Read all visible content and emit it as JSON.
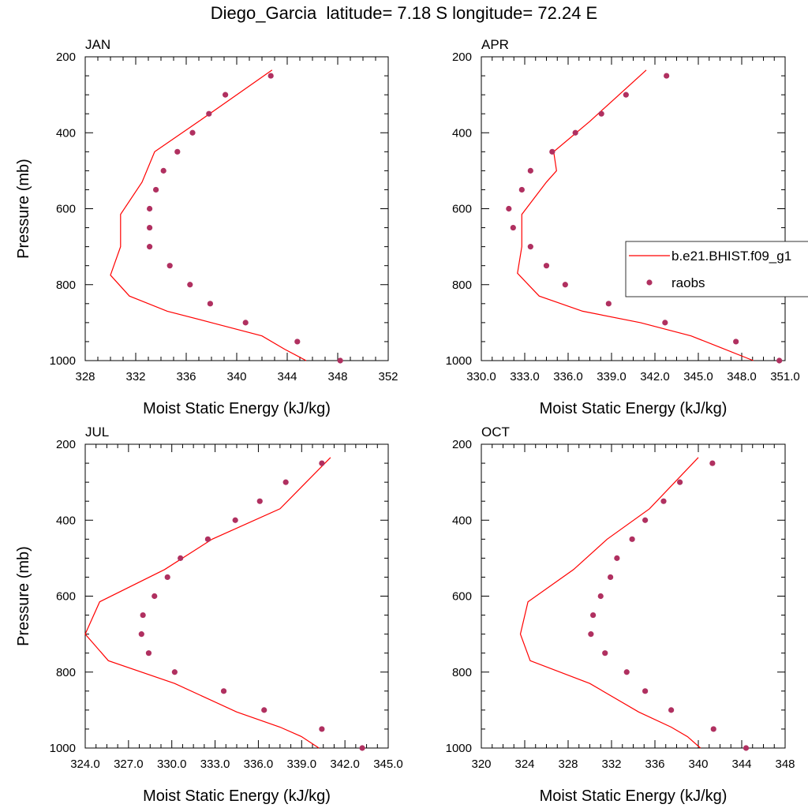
{
  "title": "Diego_Garcia  latitude= 7.18 S longitude= 72.24 E",
  "colors": {
    "model": "#ff0000",
    "obs": "#b03060"
  },
  "chart_data": [
    {
      "type": "line",
      "title": "JAN",
      "xlabel": "Moist Static Energy (kJ/kg)",
      "ylabel": "Pressure (mb)",
      "xlim": [
        328,
        352
      ],
      "ylim": [
        1000,
        200
      ],
      "xticks": [
        "328",
        "332",
        "336",
        "340",
        "344",
        "348",
        "352"
      ],
      "yticks": [
        "200",
        "400",
        "600",
        "800",
        "1000"
      ],
      "series": [
        {
          "name": "b.e21.BHIST.f09_g1",
          "kind": "line",
          "x": [
            345.5,
            343.8,
            342.0,
            338.0,
            334.5,
            331.5,
            330.0,
            330.8,
            330.8,
            332.5,
            333.5,
            337.0,
            342.8
          ],
          "y": [
            1000,
            970,
            935,
            900,
            870,
            830,
            775,
            700,
            615,
            530,
            450,
            370,
            235
          ]
        },
        {
          "name": "raobs",
          "kind": "scatter",
          "x": [
            348.2,
            344.8,
            340.7,
            337.9,
            336.3,
            334.7,
            333.1,
            333.1,
            333.1,
            333.6,
            334.2,
            335.3,
            336.5,
            337.8,
            339.1,
            342.7
          ],
          "y": [
            1000,
            950,
            900,
            850,
            800,
            750,
            700,
            650,
            600,
            550,
            500,
            450,
            400,
            350,
            300,
            250
          ]
        }
      ]
    },
    {
      "type": "line",
      "title": "APR",
      "xlabel": "Moist Static Energy (kJ/kg)",
      "ylabel": "",
      "xlim": [
        330,
        351
      ],
      "ylim": [
        1000,
        200
      ],
      "xticks": [
        "330.0",
        "333.0",
        "336.0",
        "339.0",
        "342.0",
        "345.0",
        "348.0",
        "351.0"
      ],
      "yticks": [
        "200",
        "400",
        "600",
        "800",
        "1000"
      ],
      "series": [
        {
          "name": "b.e21.BHIST.f09_g1",
          "kind": "line",
          "x": [
            348.8,
            346.5,
            344.5,
            341.0,
            337.0,
            334.0,
            332.5,
            332.8,
            332.8,
            334.5,
            335.2,
            335.0,
            337.5,
            341.4
          ],
          "y": [
            1000,
            965,
            935,
            900,
            870,
            830,
            770,
            700,
            615,
            530,
            500,
            450,
            370,
            235
          ]
        },
        {
          "name": "raobs",
          "kind": "scatter",
          "x": [
            350.6,
            347.6,
            342.7,
            338.8,
            335.8,
            334.5,
            333.4,
            332.2,
            331.9,
            332.8,
            333.4,
            334.9,
            336.5,
            338.3,
            340.0,
            342.8
          ],
          "y": [
            1000,
            950,
            900,
            850,
            800,
            750,
            700,
            650,
            600,
            550,
            500,
            450,
            400,
            350,
            300,
            250
          ]
        }
      ],
      "legend": {
        "placement": "right",
        "entries": [
          "b.e21.BHIST.f09_g1",
          "raobs"
        ]
      }
    },
    {
      "type": "line",
      "title": "JUL",
      "xlabel": "Moist Static Energy (kJ/kg)",
      "ylabel": "Pressure (mb)",
      "xlim": [
        324,
        345
      ],
      "ylim": [
        1000,
        200
      ],
      "xticks": [
        "324.0",
        "327.0",
        "330.0",
        "333.0",
        "336.0",
        "339.0",
        "342.0",
        "345.0"
      ],
      "yticks": [
        "200",
        "400",
        "600",
        "800",
        "1000"
      ],
      "series": [
        {
          "name": "b.e21.BHIST.f09_g1",
          "kind": "line",
          "x": [
            340.2,
            339.0,
            337.5,
            334.5,
            330.2,
            325.6,
            324.0,
            325.0,
            329.5,
            332.8,
            337.5,
            341.0
          ],
          "y": [
            1000,
            970,
            945,
            905,
            830,
            770,
            700,
            615,
            530,
            450,
            370,
            235
          ]
        },
        {
          "name": "raobs",
          "kind": "scatter",
          "x": [
            343.2,
            340.4,
            336.4,
            333.6,
            330.2,
            328.4,
            327.9,
            328.0,
            328.8,
            329.7,
            330.6,
            332.5,
            334.4,
            336.1,
            337.9,
            340.4
          ],
          "y": [
            1000,
            950,
            900,
            850,
            800,
            750,
            700,
            650,
            600,
            550,
            500,
            450,
            400,
            350,
            300,
            250
          ]
        }
      ]
    },
    {
      "type": "line",
      "title": "OCT",
      "xlabel": "Moist Static Energy (kJ/kg)",
      "ylabel": "",
      "xlim": [
        320,
        348
      ],
      "ylim": [
        1000,
        200
      ],
      "xticks": [
        "320",
        "324",
        "328",
        "332",
        "336",
        "340",
        "344",
        "348"
      ],
      "yticks": [
        "200",
        "400",
        "600",
        "800",
        "1000"
      ],
      "series": [
        {
          "name": "b.e21.BHIST.f09_g1",
          "kind": "line",
          "x": [
            340.2,
            339.0,
            337.5,
            334.5,
            330.0,
            324.5,
            323.6,
            324.3,
            328.5,
            331.6,
            335.5,
            340.0
          ],
          "y": [
            1000,
            970,
            945,
            905,
            830,
            770,
            700,
            615,
            530,
            450,
            370,
            235
          ]
        },
        {
          "name": "raobs",
          "kind": "scatter",
          "x": [
            344.4,
            341.4,
            337.5,
            335.1,
            333.4,
            331.4,
            330.1,
            330.3,
            331.0,
            331.9,
            332.5,
            333.9,
            335.1,
            336.8,
            338.3,
            341.3
          ],
          "y": [
            1000,
            950,
            900,
            850,
            800,
            750,
            700,
            650,
            600,
            550,
            500,
            450,
            400,
            350,
            300,
            250
          ]
        }
      ]
    }
  ]
}
